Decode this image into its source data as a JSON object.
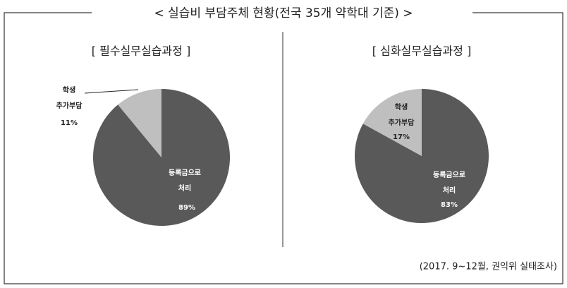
{
  "header": {
    "title": "< 실습비 부담주체 현황(전국 35개 약학대 기준) >"
  },
  "chart_data": [
    {
      "type": "pie",
      "title": "[ 필수실무실습과정 ]",
      "categories": [
        "등록금으로 처리",
        "학생 추가부담"
      ],
      "values": [
        89,
        11
      ],
      "value_labels": [
        "89%",
        "11%"
      ],
      "colors": [
        "#595959",
        "#bfbfbf"
      ]
    },
    {
      "type": "pie",
      "title": "[ 심화실무실습과정 ]",
      "categories": [
        "등록금으로 처리",
        "학생 추가부담"
      ],
      "values": [
        83,
        17
      ],
      "value_labels": [
        "83%",
        "17%"
      ],
      "colors": [
        "#595959",
        "#bfbfbf"
      ]
    }
  ],
  "footer": {
    "source": "(2017. 9~12월, 권익위 실태조사)"
  }
}
